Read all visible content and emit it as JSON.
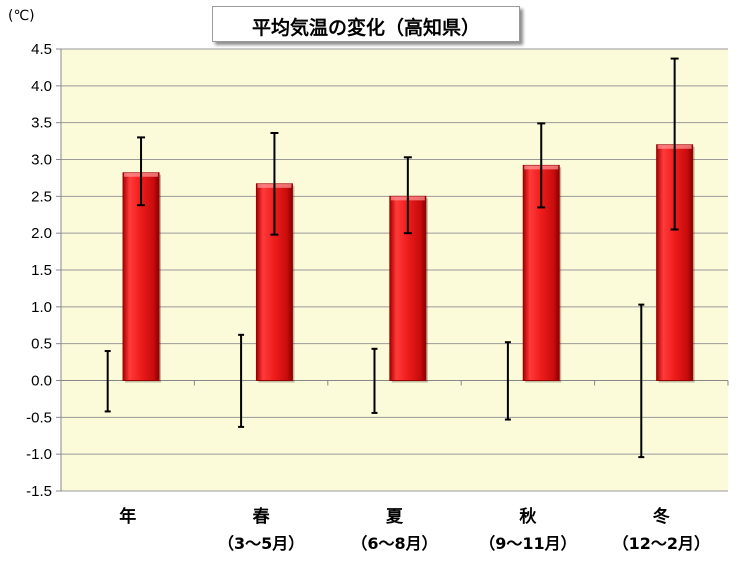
{
  "chart_data": {
    "type": "bar",
    "title": "平均気温の変化（高知県）",
    "unit_label": "(℃)",
    "ylim": [
      -1.5,
      4.5
    ],
    "ytick_step": 0.5,
    "grid": true,
    "legend": "none",
    "categories": [
      "年",
      "春",
      "夏",
      "秋",
      "冬"
    ],
    "category_sublabels": [
      "",
      "（3～5月）",
      "（6～8月）",
      "（9～11月）",
      "（12～2月）"
    ],
    "series": [
      {
        "type": "bar",
        "values": [
          2.82,
          2.67,
          2.5,
          2.92,
          3.2
        ],
        "error_low": [
          2.38,
          1.98,
          2.0,
          2.35,
          2.05
        ],
        "error_high": [
          3.3,
          3.36,
          3.03,
          3.49,
          4.37
        ]
      },
      {
        "type": "range",
        "values_low": [
          -0.42,
          -0.63,
          -0.44,
          -0.53,
          -1.04
        ],
        "values_high": [
          0.4,
          0.62,
          0.43,
          0.52,
          1.03
        ]
      }
    ],
    "colors": {
      "plot_bg": "#fcfbd9",
      "bar": "#ee1c1c",
      "bar_dark": "#9b0000",
      "axis": "#888888",
      "grid": "#9a9a9a"
    }
  }
}
